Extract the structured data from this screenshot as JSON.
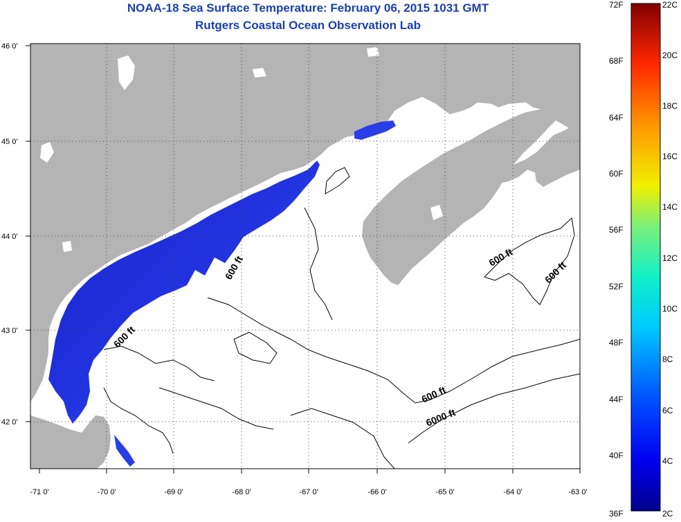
{
  "header": {
    "title": "NOAA-18 Sea Surface Temperature:  February 06, 2015 1031 GMT",
    "subtitle": "Rutgers Coastal Ocean Observation Lab"
  },
  "map": {
    "lon_ticks": [
      "-71 0'",
      "-70 0'",
      "-69 0'",
      "-68 0'",
      "-67 0'",
      "-66 0'",
      "-65 0'",
      "-64 0'",
      "-63 0'"
    ],
    "lat_ticks": [
      "46 0'",
      "45 0'",
      "44 0'",
      "43 0'",
      "42 0'"
    ],
    "contour_labels": [
      "600 ft",
      "600 ft",
      "600 ft",
      "600 ft",
      "600 ft",
      "6000 ft"
    ],
    "colors": {
      "land": "#b4b4b4",
      "ocean": "#ffffff",
      "sst_warm_edge": "#3a6ef0",
      "sst_cold_core": "#1e1ed2"
    }
  },
  "colorbar": {
    "fahrenheit": [
      "72F",
      "68F",
      "64F",
      "60F",
      "56F",
      "52F",
      "48F",
      "44F",
      "40F",
      "36F"
    ],
    "celsius": [
      "22C",
      "20C",
      "18C",
      "16C",
      "14C",
      "12C",
      "10C",
      "8C",
      "6C",
      "4C",
      "2C"
    ]
  }
}
